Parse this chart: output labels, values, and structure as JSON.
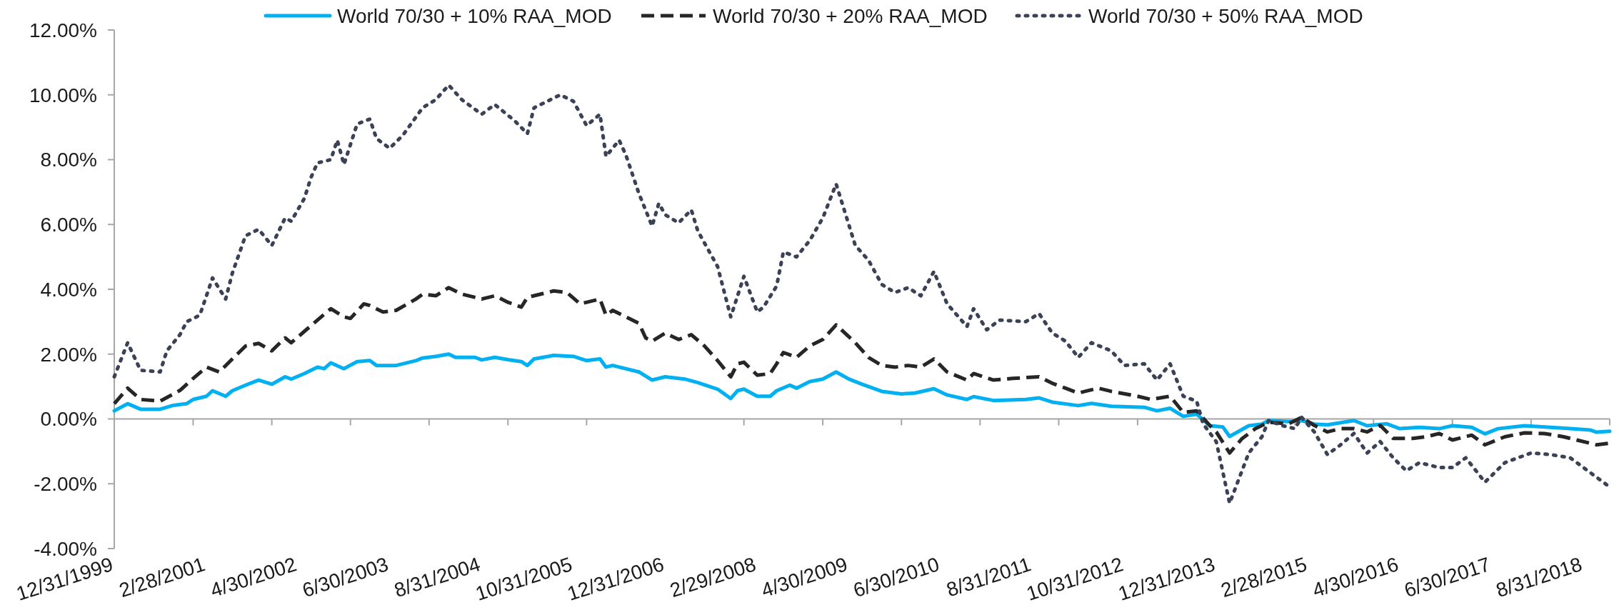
{
  "chart_data": {
    "type": "line",
    "legend": "top",
    "ylim": [
      -4,
      12
    ],
    "yticks": [
      {
        "value": -4,
        "label": "-4.00%"
      },
      {
        "value": -2,
        "label": "-2.00%"
      },
      {
        "value": 0,
        "label": "0.00%"
      },
      {
        "value": 2,
        "label": "2.00%"
      },
      {
        "value": 4,
        "label": "4.00%"
      },
      {
        "value": 6,
        "label": "6.00%"
      },
      {
        "value": 8,
        "label": "8.00%"
      },
      {
        "value": 10,
        "label": "10.00%"
      },
      {
        "value": 12,
        "label": "12.00%"
      }
    ],
    "xlim": [
      "1999-12",
      "2018-12"
    ],
    "xticks": [
      {
        "value": "1999-12",
        "label": "12/31/1999"
      },
      {
        "value": "2000-12",
        "label": null
      },
      {
        "value": "2001-02",
        "label": "2/28/2001"
      },
      {
        "value": "2001-12",
        "label": null
      },
      {
        "value": "2002-04",
        "label": "4/30/2002"
      },
      {
        "value": "2002-12",
        "label": null
      },
      {
        "value": "2003-06",
        "label": "6/30/2003"
      },
      {
        "value": "2003-12",
        "label": null
      },
      {
        "value": "2004-08",
        "label": "8/31/2004"
      },
      {
        "value": "2004-12",
        "label": null
      },
      {
        "value": "2005-10",
        "label": "10/31/2005"
      },
      {
        "value": "2005-12",
        "label": null
      },
      {
        "value": "2006-12",
        "label": "12/31/2006"
      },
      {
        "value": "2007-12",
        "label": null
      },
      {
        "value": "2008-02",
        "label": "2/29/2008"
      },
      {
        "value": "2008-12",
        "label": null
      },
      {
        "value": "2009-04",
        "label": "4/30/2009"
      },
      {
        "value": "2009-12",
        "label": null
      },
      {
        "value": "2010-06",
        "label": "6/30/2010"
      },
      {
        "value": "2010-12",
        "label": null
      },
      {
        "value": "2011-08",
        "label": "8/31/2011"
      },
      {
        "value": "2011-12",
        "label": null
      },
      {
        "value": "2012-10",
        "label": "10/31/2012"
      },
      {
        "value": "2012-12",
        "label": null
      },
      {
        "value": "2013-12",
        "label": "12/31/2013"
      },
      {
        "value": "2014-12",
        "label": null
      },
      {
        "value": "2015-02",
        "label": "2/28/2015"
      },
      {
        "value": "2015-12",
        "label": null
      },
      {
        "value": "2016-04",
        "label": "4/30/2016"
      },
      {
        "value": "2016-12",
        "label": null
      },
      {
        "value": "2017-06",
        "label": "6/30/2017"
      },
      {
        "value": "2017-12",
        "label": null
      },
      {
        "value": "2018-08",
        "label": "8/31/2018"
      },
      {
        "value": "2018-12",
        "label": null
      }
    ],
    "series": [
      {
        "name": "World 70/30 + 10% RAA_MOD",
        "color": "#00b0f0",
        "line_style": "solid",
        "x": [
          "1999-12",
          "2000-02",
          "2000-04",
          "2000-07",
          "2000-09",
          "2000-11",
          "2000-12",
          "2001-02",
          "2001-03",
          "2001-05",
          "2001-06",
          "2001-08",
          "2001-10",
          "2001-12",
          "2002-02",
          "2002-03",
          "2002-05",
          "2002-07",
          "2002-08",
          "2002-09",
          "2002-11",
          "2003-01",
          "2003-03",
          "2003-04",
          "2003-07",
          "2003-10",
          "2003-11",
          "2004-01",
          "2004-03",
          "2004-04",
          "2004-07",
          "2004-08",
          "2004-10",
          "2004-12",
          "2005-02",
          "2005-03",
          "2005-04",
          "2005-07",
          "2005-10",
          "2005-12",
          "2006-02",
          "2006-03",
          "2006-04",
          "2006-08",
          "2006-10",
          "2006-11",
          "2006-12",
          "2007-03",
          "2007-05",
          "2007-08",
          "2007-10",
          "2007-11",
          "2007-12",
          "2008-02",
          "2008-04",
          "2008-05",
          "2008-07",
          "2008-08",
          "2008-10",
          "2008-12",
          "2009-02",
          "2009-04",
          "2009-06",
          "2009-09",
          "2009-12",
          "2010-02",
          "2010-05",
          "2010-07",
          "2010-10",
          "2010-11",
          "2011-02",
          "2011-07",
          "2011-09",
          "2011-11",
          "2012-03",
          "2012-05",
          "2012-08",
          "2013-01",
          "2013-03",
          "2013-05",
          "2013-07",
          "2013-09",
          "2013-11",
          "2014-01",
          "2014-02",
          "2014-05",
          "2014-07",
          "2014-08",
          "2014-11",
          "2015-01",
          "2015-03",
          "2015-05",
          "2015-09",
          "2015-11",
          "2016-02",
          "2016-04",
          "2016-07",
          "2016-10",
          "2016-12",
          "2017-03",
          "2017-05",
          "2017-07",
          "2017-11",
          "2018-03",
          "2018-06",
          "2018-09",
          "2018-10",
          "2018-12"
        ],
        "values": [
          0.25,
          0.47,
          0.3,
          0.3,
          0.42,
          0.47,
          0.6,
          0.7,
          0.87,
          0.7,
          0.87,
          1.04,
          1.2,
          1.07,
          1.3,
          1.23,
          1.4,
          1.6,
          1.55,
          1.73,
          1.55,
          1.77,
          1.8,
          1.65,
          1.65,
          1.8,
          1.88,
          1.93,
          2.0,
          1.9,
          1.9,
          1.82,
          1.9,
          1.83,
          1.77,
          1.65,
          1.85,
          1.96,
          1.93,
          1.8,
          1.85,
          1.6,
          1.65,
          1.45,
          1.2,
          1.25,
          1.3,
          1.23,
          1.12,
          0.92,
          0.63,
          0.87,
          0.92,
          0.7,
          0.7,
          0.87,
          1.04,
          0.95,
          1.15,
          1.23,
          1.45,
          1.23,
          1.07,
          0.85,
          0.77,
          0.8,
          0.93,
          0.74,
          0.6,
          0.69,
          0.57,
          0.6,
          0.65,
          0.52,
          0.41,
          0.48,
          0.39,
          0.36,
          0.25,
          0.33,
          0.08,
          0.15,
          -0.21,
          -0.25,
          -0.54,
          -0.21,
          -0.16,
          -0.05,
          -0.08,
          -0.05,
          -0.16,
          -0.18,
          -0.05,
          -0.21,
          -0.15,
          -0.3,
          -0.26,
          -0.3,
          -0.21,
          -0.26,
          -0.46,
          -0.3,
          -0.21,
          -0.26,
          -0.3,
          -0.34,
          -0.41,
          -0.38
        ]
      },
      {
        "name": "World 70/30 + 20% RAA_MOD",
        "color": "#262626",
        "line_style": "dashed",
        "x": [
          "1999-12",
          "2000-02",
          "2000-04",
          "2000-07",
          "2000-10",
          "2000-12",
          "2001-02",
          "2001-04",
          "2001-08",
          "2001-10",
          "2001-12",
          "2002-02",
          "2002-03",
          "2002-05",
          "2002-07",
          "2002-09",
          "2002-11",
          "2002-12",
          "2003-02",
          "2003-03",
          "2003-05",
          "2003-07",
          "2003-10",
          "2003-11",
          "2004-01",
          "2004-03",
          "2004-05",
          "2004-08",
          "2004-10",
          "2004-12",
          "2005-02",
          "2005-03",
          "2005-07",
          "2005-09",
          "2005-11",
          "2006-02",
          "2006-03",
          "2006-04",
          "2006-08",
          "2006-09",
          "2006-10",
          "2006-12",
          "2007-02",
          "2007-04",
          "2007-06",
          "2007-08",
          "2007-10",
          "2007-11",
          "2007-12",
          "2008-02",
          "2008-04",
          "2008-05",
          "2008-06",
          "2008-08",
          "2008-10",
          "2008-12",
          "2009-02",
          "2009-05",
          "2009-07",
          "2009-09",
          "2009-11",
          "2010-01",
          "2010-03",
          "2010-05",
          "2010-07",
          "2010-10",
          "2010-11",
          "2011-02",
          "2011-05",
          "2011-09",
          "2011-11",
          "2012-01",
          "2012-03",
          "2012-06",
          "2012-08",
          "2012-12",
          "2013-02",
          "2013-05",
          "2013-07",
          "2013-09",
          "2013-11",
          "2013-12",
          "2014-02",
          "2014-04",
          "2014-06",
          "2014-08",
          "2014-11",
          "2015-01",
          "2015-03",
          "2015-05",
          "2015-07",
          "2015-09",
          "2015-11",
          "2016-01",
          "2016-03",
          "2016-06",
          "2016-08",
          "2016-10",
          "2016-12",
          "2017-03",
          "2017-05",
          "2017-08",
          "2017-11",
          "2018-02",
          "2018-05",
          "2018-07",
          "2018-10",
          "2018-12"
        ],
        "values": [
          0.47,
          0.95,
          0.6,
          0.55,
          0.88,
          1.25,
          1.6,
          1.45,
          2.25,
          2.33,
          2.1,
          2.5,
          2.35,
          2.7,
          3.05,
          3.4,
          3.15,
          3.1,
          3.55,
          3.5,
          3.3,
          3.35,
          3.7,
          3.85,
          3.8,
          4.05,
          3.85,
          3.7,
          3.8,
          3.6,
          3.45,
          3.75,
          3.95,
          3.9,
          3.55,
          3.7,
          3.2,
          3.35,
          2.95,
          2.5,
          2.4,
          2.65,
          2.45,
          2.6,
          2.25,
          1.8,
          1.3,
          1.7,
          1.75,
          1.35,
          1.4,
          1.7,
          2.05,
          1.9,
          2.25,
          2.45,
          2.9,
          2.35,
          1.9,
          1.65,
          1.6,
          1.65,
          1.6,
          1.85,
          1.45,
          1.2,
          1.4,
          1.2,
          1.25,
          1.3,
          1.1,
          0.95,
          0.8,
          0.95,
          0.85,
          0.7,
          0.6,
          0.7,
          0.2,
          0.25,
          -0.2,
          -0.4,
          -1.05,
          -0.6,
          -0.3,
          -0.1,
          -0.15,
          0.05,
          -0.2,
          -0.4,
          -0.3,
          -0.3,
          -0.4,
          -0.2,
          -0.6,
          -0.6,
          -0.55,
          -0.45,
          -0.65,
          -0.5,
          -0.8,
          -0.55,
          -0.43,
          -0.45,
          -0.55,
          -0.65,
          -0.8,
          -0.75
        ]
      },
      {
        "name": "World 70/30 + 50% RAA_MOD",
        "color": "#3b4256",
        "line_style": "dotted",
        "x": [
          "1999-12",
          "2000-02",
          "2000-04",
          "2000-07",
          "2000-08",
          "2000-10",
          "2000-11",
          "2001-01",
          "2001-03",
          "2001-05",
          "2001-06",
          "2001-08",
          "2001-10",
          "2001-12",
          "2002-02",
          "2002-03",
          "2002-05",
          "2002-06",
          "2002-07",
          "2002-09",
          "2002-10",
          "2002-11",
          "2003-01",
          "2003-03",
          "2003-04",
          "2003-06",
          "2003-08",
          "2003-11",
          "2004-01",
          "2004-03",
          "2004-05",
          "2004-08",
          "2004-10",
          "2005-01",
          "2005-03",
          "2005-04",
          "2005-08",
          "2005-10",
          "2005-12",
          "2006-02",
          "2006-03",
          "2006-05",
          "2006-06",
          "2006-08",
          "2006-10",
          "2006-11",
          "2006-12",
          "2007-02",
          "2007-04",
          "2007-05",
          "2007-08",
          "2007-10",
          "2007-12",
          "2008-02",
          "2008-03",
          "2008-05",
          "2008-06",
          "2008-08",
          "2008-10",
          "2008-12",
          "2009-02",
          "2009-05",
          "2009-07",
          "2009-09",
          "2009-11",
          "2010-01",
          "2010-03",
          "2010-05",
          "2010-07",
          "2010-10",
          "2010-11",
          "2011-01",
          "2011-03",
          "2011-07",
          "2011-09",
          "2011-11",
          "2012-01",
          "2012-03",
          "2012-05",
          "2012-08",
          "2012-10",
          "2013-01",
          "2013-03",
          "2013-05",
          "2013-07",
          "2013-09",
          "2013-10",
          "2013-12",
          "2014-02",
          "2014-05",
          "2014-07",
          "2014-08",
          "2014-10",
          "2014-12",
          "2015-01",
          "2015-03",
          "2015-05",
          "2015-07",
          "2015-09",
          "2015-11",
          "2016-01",
          "2016-03",
          "2016-05",
          "2016-07",
          "2016-10",
          "2016-12",
          "2017-02",
          "2017-05",
          "2017-08",
          "2017-12",
          "2018-03",
          "2018-06",
          "2018-08",
          "2018-12"
        ],
        "values": [
          1.3,
          2.35,
          1.5,
          1.45,
          2.1,
          2.6,
          3.0,
          3.2,
          4.35,
          3.7,
          4.5,
          5.65,
          5.85,
          5.35,
          6.2,
          6.1,
          6.8,
          7.45,
          7.9,
          8.0,
          8.6,
          7.85,
          9.1,
          9.25,
          8.65,
          8.35,
          8.75,
          9.6,
          9.85,
          10.3,
          9.85,
          9.4,
          9.7,
          9.2,
          8.8,
          9.6,
          10.0,
          9.8,
          9.05,
          9.4,
          8.1,
          8.6,
          8.15,
          6.95,
          5.95,
          6.65,
          6.3,
          6.05,
          6.45,
          5.8,
          4.7,
          3.15,
          4.4,
          3.3,
          3.45,
          4.1,
          5.15,
          5.0,
          5.5,
          6.2,
          7.25,
          5.35,
          4.9,
          4.15,
          3.9,
          4.05,
          3.8,
          4.55,
          3.55,
          2.85,
          3.4,
          2.75,
          3.05,
          3.0,
          3.25,
          2.65,
          2.4,
          1.9,
          2.35,
          2.1,
          1.65,
          1.7,
          1.2,
          1.7,
          0.7,
          0.55,
          -0.15,
          -0.7,
          -2.6,
          -1.05,
          -0.55,
          -0.05,
          -0.2,
          -0.3,
          0.05,
          -0.4,
          -1.1,
          -0.8,
          -0.45,
          -1.05,
          -0.7,
          -1.2,
          -1.6,
          -1.35,
          -1.5,
          -1.5,
          -1.2,
          -1.95,
          -1.35,
          -1.05,
          -1.1,
          -1.2,
          -1.5,
          -2.1
        ]
      }
    ]
  }
}
